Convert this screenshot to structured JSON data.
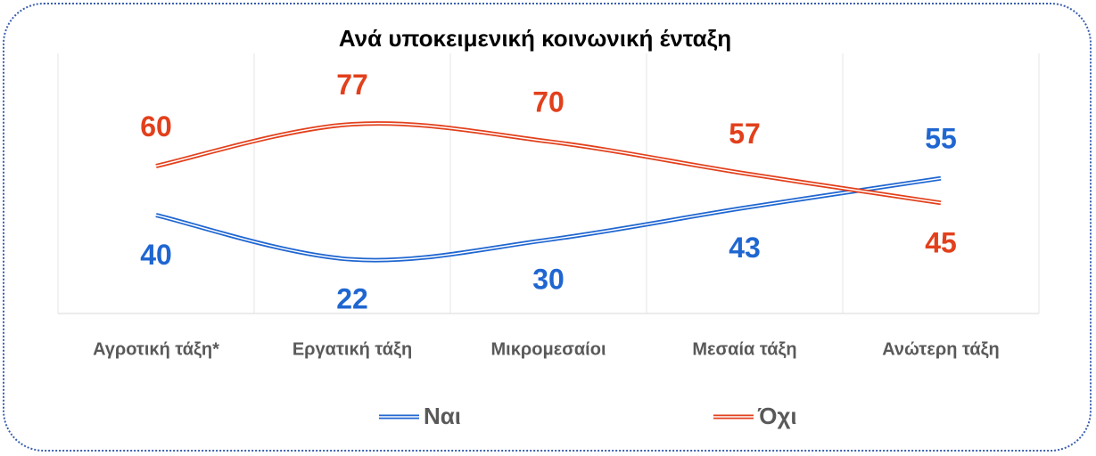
{
  "chart_data": {
    "type": "line",
    "title": "Ανά υποκειμενική κοινωνική ένταξη",
    "categories": [
      "Αγροτική τάξη*",
      "Εργατική τάξη",
      "Μικρομεσαίοι",
      "Μεσαία τάξη",
      "Ανώτερη τάξη"
    ],
    "series": [
      {
        "name": "Ναι",
        "color": "#1f66d1",
        "values": [
          40,
          22,
          30,
          43,
          55
        ]
      },
      {
        "name": "Όχι",
        "color": "#e2401c",
        "values": [
          60,
          77,
          70,
          57,
          45
        ]
      }
    ],
    "grid": true,
    "legend": "bottom"
  }
}
